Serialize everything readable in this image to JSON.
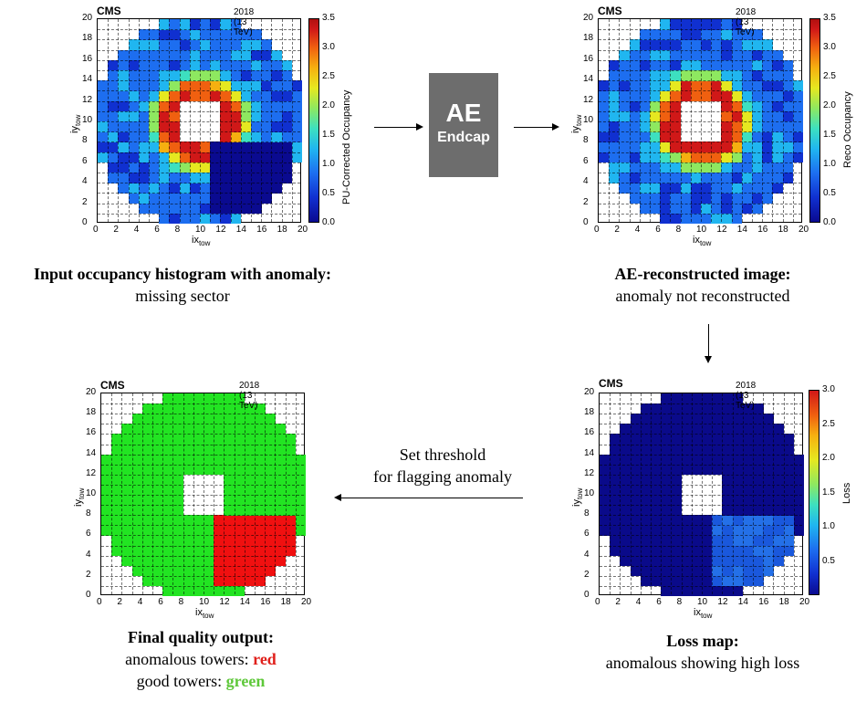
{
  "ae_box": {
    "title": "AE",
    "subtitle": "Endcap"
  },
  "threshold": {
    "line1": "Set threshold",
    "line2": "for flagging anomaly"
  },
  "panels": [
    {
      "id": "input",
      "cms": "CMS",
      "energy": "2018 (13 TeV)",
      "xlabel": "ix",
      "xsub": "tow",
      "ylabel": "iy",
      "ysub": "tow",
      "zlabel": "PU-Corrected Occupancy",
      "zticks": [
        "0.0",
        "0.5",
        "1.0",
        "1.5",
        "2.0",
        "2.5",
        "3.0",
        "3.5"
      ],
      "caption_bold": "Input occupancy histogram with anomaly:",
      "caption_line2": "missing sector"
    },
    {
      "id": "reco",
      "cms": "CMS",
      "energy": "2018 (13 TeV)",
      "xlabel": "ix",
      "xsub": "tow",
      "ylabel": "iy",
      "ysub": "tow",
      "zlabel": "Reco Occupancy",
      "zticks": [
        "0.0",
        "0.5",
        "1.0",
        "1.5",
        "2.0",
        "2.5",
        "3.0",
        "3.5"
      ],
      "caption_bold": "AE-reconstructed image:",
      "caption_line2": "anomaly not reconstructed"
    },
    {
      "id": "final",
      "cms": "CMS",
      "energy": "2018 (13 TeV)",
      "xlabel": "ix",
      "xsub": "tow",
      "ylabel": "iy",
      "ysub": "tow",
      "caption_bold": "Final quality output:",
      "caption_line2_prefix": "anomalous towers: ",
      "caption_line2_colored": "red",
      "caption_line3_prefix": "good towers: ",
      "caption_line3_colored": "green"
    },
    {
      "id": "loss",
      "cms": "CMS",
      "energy": "2018 (13 TeV)",
      "xlabel": "ix",
      "xsub": "tow",
      "ylabel": "iy",
      "ysub": "tow",
      "zlabel": "Loss",
      "zticks": [
        "0.5",
        "1.0",
        "1.5",
        "2.0",
        "2.5",
        "3.0"
      ],
      "caption_bold": "Loss map:",
      "caption_line2": "anomalous showing high loss"
    }
  ],
  "axis_ticks": [
    "0",
    "2",
    "4",
    "6",
    "8",
    "10",
    "12",
    "14",
    "16",
    "18",
    "20"
  ],
  "colors": {
    "good": "#22e422",
    "bad": "#f01010",
    "loss_low": "#0a0a8a",
    "loss_high": "#1d5fe0"
  }
}
